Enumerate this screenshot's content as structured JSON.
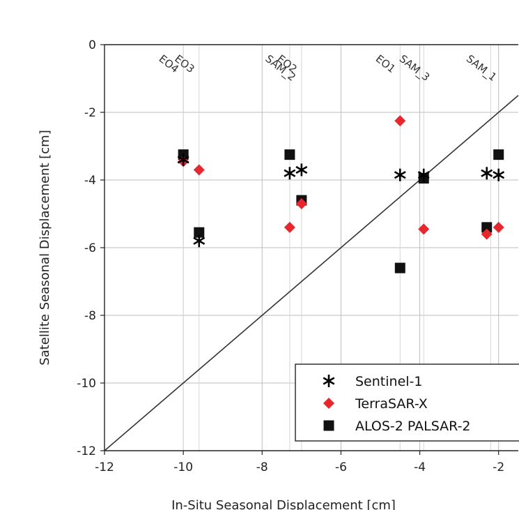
{
  "chart_data": {
    "type": "scatter",
    "xlabel": "In-Situ Seasonal Displacement [cm]",
    "ylabel": "Satellite Seasonal Displacement [cm]",
    "xlim": [
      -12,
      -1.5
    ],
    "ylim": [
      -12,
      0
    ],
    "x_ticks": [
      "-12",
      "-10",
      "-8",
      "-6",
      "-4",
      "-2"
    ],
    "y_ticks": [
      "0",
      "-2",
      "-4",
      "-6",
      "-8",
      "-10",
      "-12"
    ],
    "grid": true,
    "reference_line": "1:1",
    "legend_position": "bottom-right",
    "site_lines": [
      {
        "label": "EO4",
        "x": -10.0
      },
      {
        "label": "EO3",
        "x": -9.6
      },
      {
        "label": "SAM_2",
        "x": -7.3
      },
      {
        "label": "EO2",
        "x": -7.0
      },
      {
        "label": "EO1",
        "x": -4.5
      },
      {
        "label": "SAM_3",
        "x": -3.9
      },
      {
        "label": "SAM_1",
        "x": -2.2
      }
    ],
    "series": [
      {
        "name": "Sentinel-1",
        "marker": "asterisk",
        "color": "#000000",
        "points": [
          {
            "x": -10.0,
            "y": -3.4
          },
          {
            "x": -9.6,
            "y": -5.8
          },
          {
            "x": -7.3,
            "y": -3.8
          },
          {
            "x": -7.0,
            "y": -3.7
          },
          {
            "x": -4.5,
            "y": -3.85
          },
          {
            "x": -3.9,
            "y": -3.85
          },
          {
            "x": -2.3,
            "y": -3.8
          },
          {
            "x": -2.0,
            "y": -3.85
          }
        ]
      },
      {
        "name": "TerraSAR-X",
        "marker": "diamond",
        "color": "#e8262d",
        "points": [
          {
            "x": -10.0,
            "y": -3.45
          },
          {
            "x": -9.6,
            "y": -3.7
          },
          {
            "x": -7.3,
            "y": -5.4
          },
          {
            "x": -7.0,
            "y": -4.7
          },
          {
            "x": -4.5,
            "y": -2.25
          },
          {
            "x": -3.9,
            "y": -5.45
          },
          {
            "x": -2.3,
            "y": -5.6
          },
          {
            "x": -2.0,
            "y": -5.4
          }
        ]
      },
      {
        "name": "ALOS-2 PALSAR-2",
        "marker": "square",
        "color": "#111111",
        "points": [
          {
            "x": -10.0,
            "y": -3.25
          },
          {
            "x": -9.6,
            "y": -5.55
          },
          {
            "x": -7.3,
            "y": -3.25
          },
          {
            "x": -7.0,
            "y": -4.6
          },
          {
            "x": -4.5,
            "y": -6.6
          },
          {
            "x": -3.9,
            "y": -3.95
          },
          {
            "x": -2.3,
            "y": -5.4
          },
          {
            "x": -2.0,
            "y": -3.25
          }
        ]
      }
    ]
  }
}
